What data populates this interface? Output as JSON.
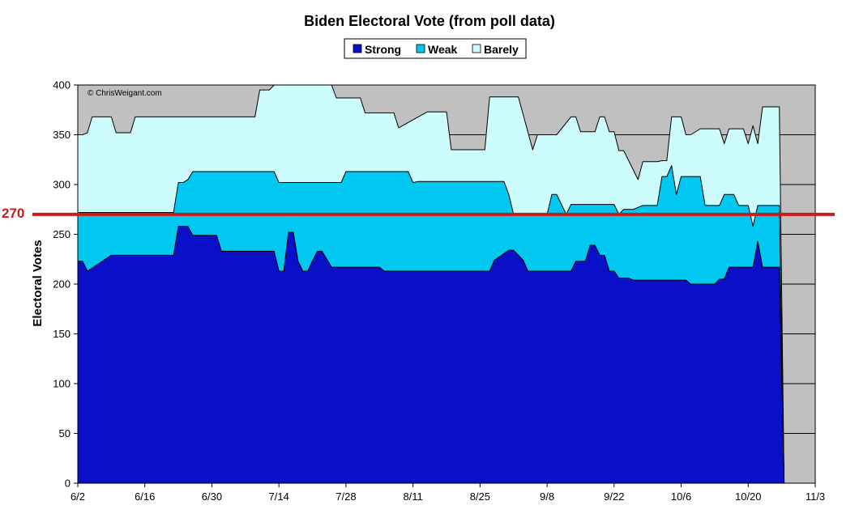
{
  "chart_data": {
    "type": "area",
    "title": "Biden Electoral Vote (from poll data)",
    "xlabel": "",
    "ylabel": "Electoral Votes",
    "copyright": "© ChrisWeigant.com",
    "ylim": [
      0,
      400
    ],
    "yticks": [
      0,
      50,
      100,
      150,
      200,
      250,
      300,
      350,
      400
    ],
    "x_start": "6/2",
    "x_end": "11/3",
    "x_tick_labels": [
      "6/2",
      "6/16",
      "6/30",
      "7/14",
      "7/28",
      "8/11",
      "8/25",
      "9/8",
      "9/22",
      "10/6",
      "10/20",
      "11/3"
    ],
    "x_tick_days": [
      0,
      14,
      28,
      42,
      56,
      70,
      84,
      98,
      112,
      126,
      140,
      154
    ],
    "legend_position": "top",
    "grid": true,
    "reference_line": {
      "value": 270,
      "label": "270",
      "color": "#cc1a1a"
    },
    "colors": {
      "plot_bg": "#c0c0c0",
      "strong": "#0a10c8",
      "weak": "#00c8f0",
      "barely": "#ccfcfc",
      "grid": "#000000"
    },
    "series": [
      {
        "name": "Strong",
        "x": [
          0,
          1,
          2,
          7,
          20,
          21,
          23,
          24,
          29,
          30,
          41,
          42,
          43,
          44,
          45,
          46,
          47,
          48,
          50,
          51,
          53,
          54,
          63,
          64,
          86,
          87,
          90,
          91,
          93,
          94,
          103,
          104,
          106,
          107,
          108,
          109,
          110,
          111,
          112,
          113,
          114,
          115,
          116,
          125,
          126,
          127,
          128,
          129,
          130,
          133,
          134,
          135,
          136,
          137,
          138,
          139,
          140,
          141,
          142,
          143,
          144,
          145,
          146,
          146.5,
          147.5
        ],
        "values": [
          223,
          223,
          213,
          229,
          229,
          258,
          258,
          249,
          249,
          233,
          233,
          213,
          213,
          252,
          252,
          223,
          213,
          213,
          233,
          233,
          217,
          217,
          217,
          213,
          213,
          224,
          234,
          234,
          224,
          213,
          213,
          223,
          223,
          239,
          239,
          229,
          229,
          213,
          213,
          206,
          206,
          206,
          204,
          204,
          204,
          204,
          200,
          200,
          200,
          200,
          205,
          205,
          217,
          217,
          217,
          217,
          217,
          217,
          243,
          217,
          217,
          217,
          217,
          217,
          0
        ]
      },
      {
        "name": "Weak",
        "x": [
          0,
          20,
          21,
          22,
          23,
          24,
          27,
          41,
          42,
          55,
          56,
          57,
          69,
          70,
          71,
          72,
          73,
          77,
          78,
          89,
          90,
          91,
          92,
          93,
          94,
          95,
          96,
          98,
          99,
          100,
          101,
          102,
          103,
          104,
          112,
          113,
          114,
          115,
          116,
          118,
          120,
          121,
          122,
          123,
          124,
          125,
          126,
          127,
          128,
          130,
          131,
          133,
          134,
          135,
          136,
          137,
          138,
          139,
          140,
          141,
          142,
          143,
          144,
          145,
          146,
          146.5,
          147.5
        ],
        "values": [
          272,
          272,
          302,
          302,
          305,
          313,
          313,
          313,
          302,
          302,
          313,
          313,
          313,
          302,
          303,
          303,
          303,
          303,
          303,
          303,
          290,
          270,
          270,
          270,
          270,
          270,
          270,
          270,
          290,
          290,
          280,
          270,
          280,
          280,
          280,
          270,
          275,
          275,
          275,
          279,
          279,
          279,
          308,
          308,
          319,
          290,
          308,
          308,
          308,
          308,
          279,
          279,
          279,
          290,
          290,
          290,
          279,
          279,
          279,
          258,
          279,
          279,
          279,
          279,
          279,
          279,
          0
        ]
      },
      {
        "name": "Barely",
        "x": [
          0,
          1,
          2,
          3,
          7,
          8,
          11,
          12,
          30,
          35,
          36,
          37,
          38,
          40,
          41,
          43,
          44,
          45,
          53,
          54,
          55,
          59,
          60,
          61,
          62,
          65,
          66,
          67,
          73,
          74,
          76,
          77,
          78,
          84,
          85,
          86,
          87,
          88,
          91,
          92,
          95,
          96,
          98,
          99,
          100,
          103,
          104,
          105,
          106,
          107,
          108,
          109,
          110,
          111,
          112,
          113,
          114,
          117,
          118,
          121,
          122,
          123,
          124,
          126,
          127,
          128,
          130,
          131,
          133,
          134,
          135,
          136,
          137,
          138,
          139,
          140,
          141,
          142,
          143,
          144,
          145,
          146,
          146.5,
          147.5
        ],
        "values": [
          350,
          350,
          352,
          368,
          368,
          352,
          352,
          368,
          368,
          368,
          368,
          368,
          395,
          395,
          400,
          400,
          400,
          400,
          400,
          387,
          387,
          387,
          372,
          372,
          372,
          372,
          372,
          357,
          373,
          373,
          373,
          373,
          335,
          335,
          335,
          388,
          388,
          388,
          388,
          388,
          335,
          350,
          350,
          350,
          350,
          368,
          368,
          353,
          353,
          353,
          353,
          368,
          368,
          353,
          353,
          334,
          334,
          305,
          323,
          323,
          324,
          324,
          368,
          368,
          350,
          350,
          356,
          356,
          356,
          356,
          341,
          356,
          356,
          356,
          356,
          341,
          359,
          341,
          378,
          378,
          378,
          378,
          378,
          0
        ]
      }
    ]
  }
}
